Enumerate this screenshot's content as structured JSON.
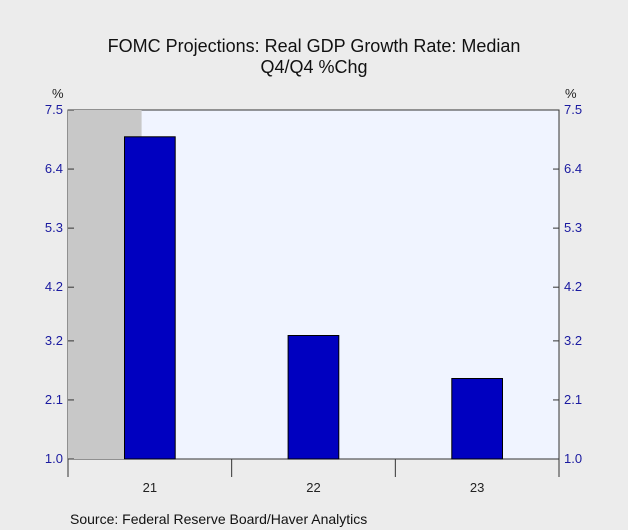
{
  "chart_data": {
    "type": "bar",
    "title_lines": [
      "FOMC Projections: Real GDP Growth Rate: Median",
      "Q4/Q4 %Chg"
    ],
    "categories": [
      "21",
      "22",
      "23"
    ],
    "series": [
      {
        "values": [
          7.0,
          3.3,
          2.5
        ],
        "color": "#0000c0"
      }
    ],
    "y_ticks": [
      "1.0",
      "2.1",
      "3.2",
      "4.2",
      "5.3",
      "6.4",
      "7.5"
    ],
    "y_tick_values": [
      1.0,
      2.1,
      3.2,
      4.2,
      5.3,
      6.4,
      7.5
    ],
    "ylim": [
      1.0,
      7.5
    ],
    "y_unit_left": "%",
    "y_unit_right": "%",
    "shaded_categories": [
      "21"
    ],
    "shade_color": "#c8c8c8",
    "plot_background": "#f0f4ff",
    "grid": false,
    "source": "Source:  Federal Reserve Board/Haver Analytics"
  }
}
